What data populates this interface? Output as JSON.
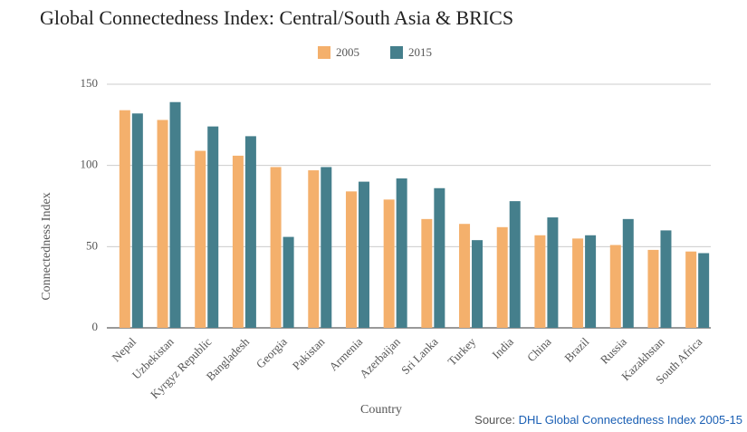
{
  "chart_data": {
    "type": "bar",
    "title": "Global Connectedness Index: Central/South Asia & BRICS",
    "x_label": "Country",
    "y_label": "Connectedness Index",
    "categories": [
      "Nepal",
      "Uzbekistan",
      "Kyrgyz Republic",
      "Bangladesh",
      "Georgia",
      "Pakistan",
      "Armenia",
      "Azerbaijan",
      "Sri Lanka",
      "Turkey",
      "India",
      "China",
      "Brazil",
      "Russia",
      "Kazakhstan",
      "South Africa"
    ],
    "series": [
      {
        "name": "2005",
        "color": "#f4b06c",
        "values": [
          134,
          128,
          109,
          106,
          99,
          97,
          84,
          79,
          67,
          64,
          62,
          57,
          55,
          51,
          48,
          47
        ]
      },
      {
        "name": "2015",
        "color": "#457f8c",
        "values": [
          132,
          139,
          124,
          118,
          56,
          99,
          90,
          92,
          86,
          54,
          78,
          68,
          57,
          67,
          60,
          46
        ]
      }
    ],
    "ylim": [
      0,
      150
    ],
    "yticks": [
      0,
      50,
      100,
      150
    ],
    "grid": true,
    "legend": "top"
  },
  "source": {
    "prefix": "Source:",
    "link": "DHL Global Connectedness Index 2005-15"
  }
}
